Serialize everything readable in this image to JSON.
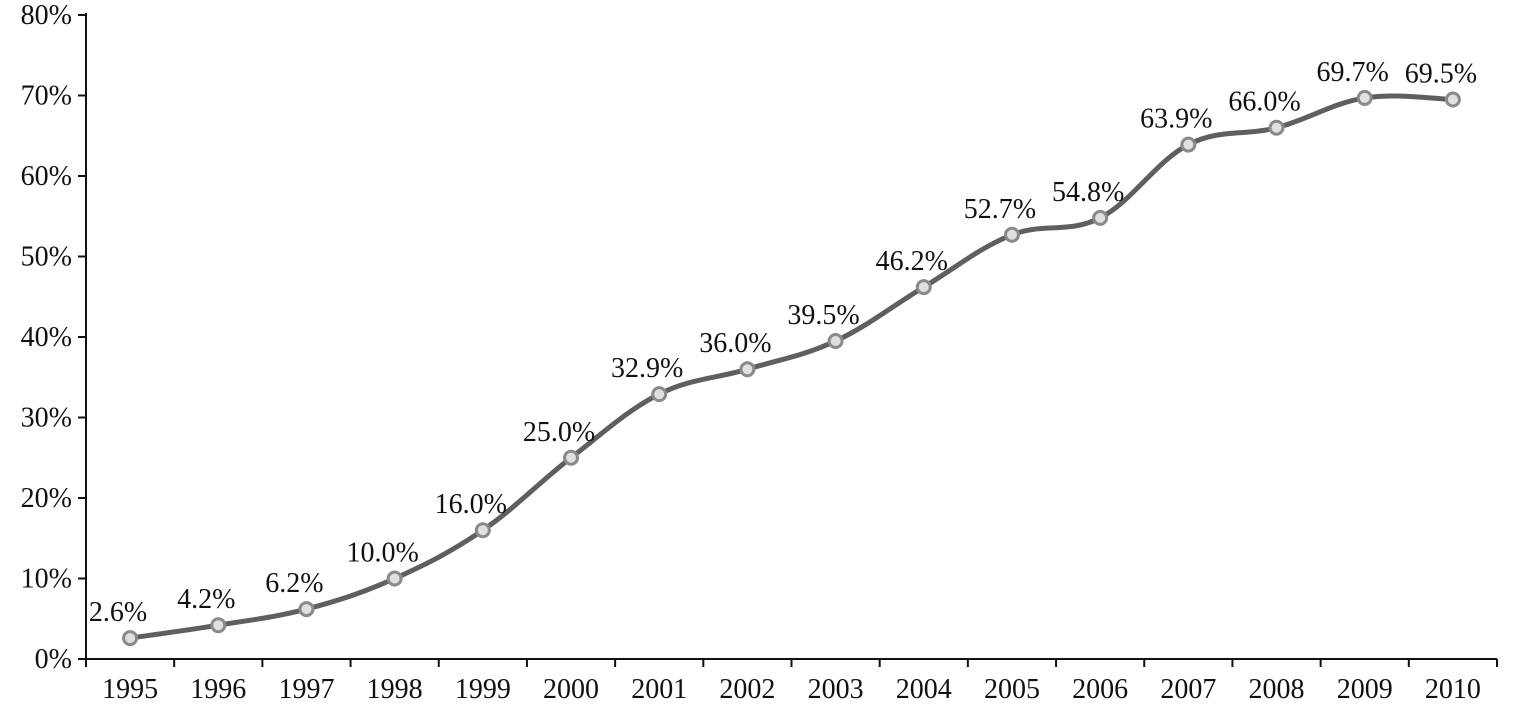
{
  "chart_data": {
    "type": "line",
    "title": "",
    "xlabel": "",
    "ylabel": "",
    "categories": [
      "1995",
      "1996",
      "1997",
      "1998",
      "1999",
      "2000",
      "2001",
      "2002",
      "2003",
      "2004",
      "2005",
      "2006",
      "2007",
      "2008",
      "2009",
      "2010"
    ],
    "series": [
      {
        "values": [
          2.6,
          4.2,
          6.2,
          10.0,
          16.0,
          25.0,
          32.9,
          36.0,
          39.5,
          46.2,
          52.7,
          54.8,
          63.9,
          66.0,
          69.7,
          69.5
        ],
        "labels": [
          "2.6%",
          "4.2%",
          "6.2%",
          "10.0%",
          "16.0%",
          "25.0%",
          "32.9%",
          "36.0%",
          "39.5%",
          "46.2%",
          "52.7%",
          "54.8%",
          "63.9%",
          "66.0%",
          "69.7%",
          "69.5%"
        ]
      }
    ],
    "ylim": [
      0,
      80
    ],
    "yticks": [
      0,
      10,
      20,
      30,
      40,
      50,
      60,
      70,
      80
    ],
    "ytick_labels": [
      "0%",
      "10%",
      "20%",
      "30%",
      "40%",
      "50%",
      "60%",
      "70%",
      "80%"
    ],
    "grid": false,
    "legend": "none",
    "colors": {
      "line": "#5f5f5f",
      "marker_fill": "#e0e0e0",
      "marker_stroke": "#8a8a8a",
      "axis": "#111111",
      "text": "#111111"
    }
  }
}
